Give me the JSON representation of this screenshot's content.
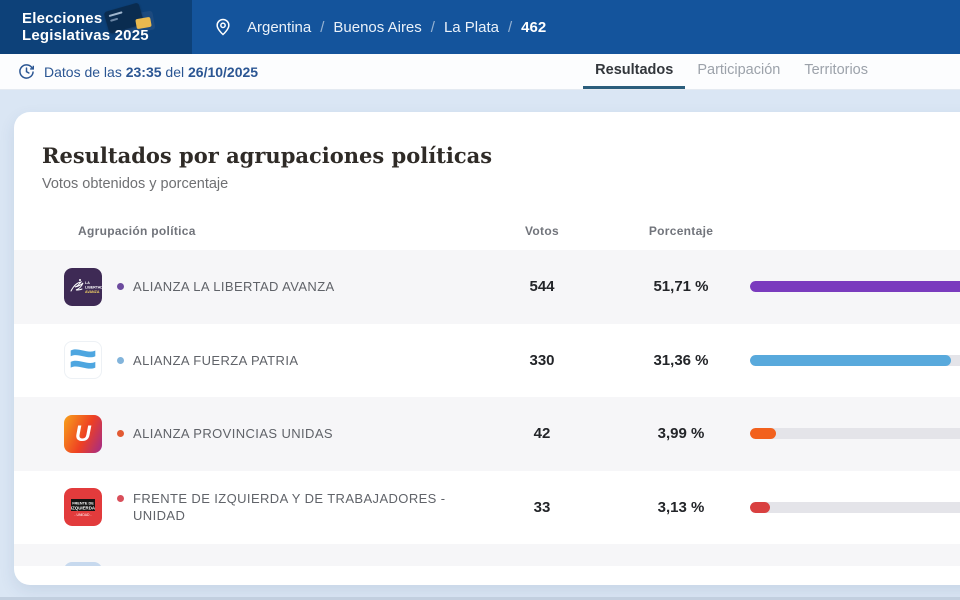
{
  "header": {
    "logo": {
      "line1": "Elecciones",
      "line2": "Legislativas 2025",
      "icon": "ballot-cards-illustration"
    },
    "breadcrumb": {
      "icon": "location-pin-icon",
      "items": [
        "Argentina",
        "Buenos Aires",
        "La Plata"
      ],
      "current": "462",
      "separator": "/"
    }
  },
  "statusbar": {
    "icon": "update-clock-icon",
    "prefix": "Datos de las",
    "time": "23:35",
    "connector": "del",
    "date": "26/10/2025"
  },
  "tabs": [
    {
      "label": "Resultados",
      "active": true
    },
    {
      "label": "Participación",
      "active": false
    },
    {
      "label": "Territorios",
      "active": false
    }
  ],
  "results": {
    "title": "Resultados por agrupaciones políticas",
    "subtitle": "Votos obtenidos y porcentaje",
    "columns": {
      "party": "Agrupación política",
      "votes": "Votos",
      "pct": "Porcentaje"
    },
    "rows": [
      {
        "name": "ALIANZA LA LIBERTAD AVANZA",
        "votes": "544",
        "pct": "51,71 %",
        "pct_value": 51.71,
        "color": "#7A3BBE",
        "dot_color": "#6C4B9E",
        "logo": "la-libertad-avanza-logo"
      },
      {
        "name": "ALIANZA FUERZA PATRIA",
        "votes": "330",
        "pct": "31,36 %",
        "pct_value": 31.36,
        "color": "#58A9DC",
        "dot_color": "#82B4DB",
        "logo": "fuerza-patria-logo"
      },
      {
        "name": "ALIANZA PROVINCIAS UNIDAS",
        "votes": "42",
        "pct": "3,99 %",
        "pct_value": 3.99,
        "color": "#F2611D",
        "dot_color": "#E25A33",
        "logo": "provincias-unidas-logo"
      },
      {
        "name": "FRENTE DE IZQUIERDA Y DE TRABAJADORES - UNIDAD",
        "votes": "33",
        "pct": "3,13 %",
        "pct_value": 3.13,
        "color": "#D94040",
        "dot_color": "#D94F5A",
        "logo": "frente-izquierda-logo"
      }
    ]
  },
  "chart_data": {
    "type": "bar",
    "orientation": "horizontal",
    "title": "Resultados por agrupaciones políticas",
    "categories": [
      "ALIANZA LA LIBERTAD AVANZA",
      "ALIANZA FUERZA PATRIA",
      "ALIANZA PROVINCIAS UNIDAS",
      "FRENTE DE IZQUIERDA Y DE TRABAJADORES - UNIDAD"
    ],
    "series": [
      {
        "name": "Votos",
        "values": [
          544,
          330,
          42,
          33
        ]
      },
      {
        "name": "Porcentaje",
        "values": [
          51.71,
          31.36,
          3.99,
          3.13
        ]
      }
    ],
    "bar_colors": [
      "#7A3BBE",
      "#58A9DC",
      "#F2611D",
      "#D94040"
    ],
    "xlim": [
      0,
      100
    ],
    "legend_position": "none",
    "grid": false
  }
}
